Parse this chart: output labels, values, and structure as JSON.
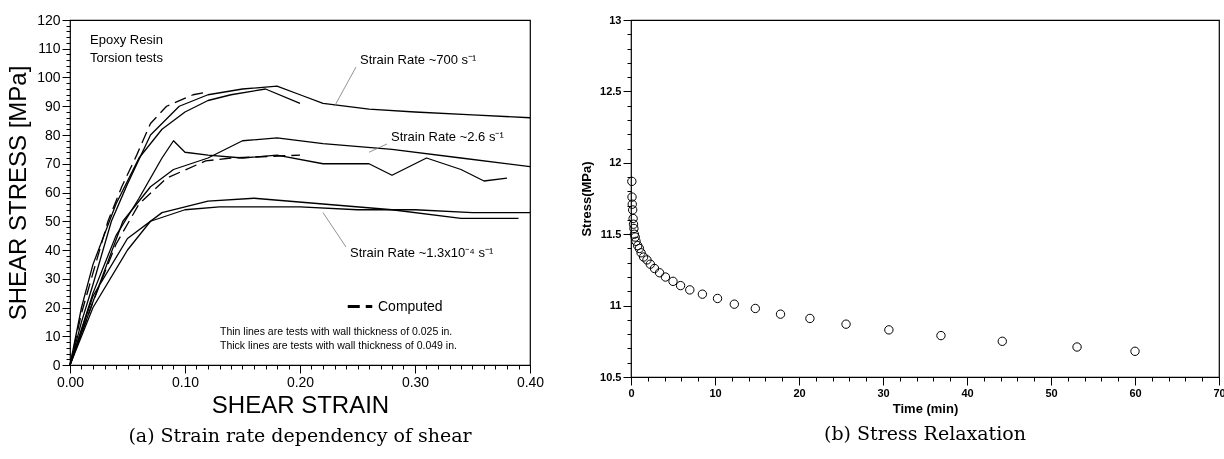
{
  "chart_data": [
    {
      "type": "line",
      "title": "(a) Strain rate dependency of shear",
      "xlabel": "SHEAR STRAIN",
      "ylabel": "SHEAR STRESS [MPa]",
      "xlim": [
        0,
        0.4
      ],
      "ylim": [
        0,
        120
      ],
      "xticks": [
        {
          "value": 0,
          "label": "0.00"
        },
        {
          "value": 0.01,
          "label": null
        },
        {
          "value": 0.02,
          "label": null
        },
        {
          "value": 0.03,
          "label": null
        },
        {
          "value": 0.04,
          "label": null
        },
        {
          "value": 0.05,
          "label": null
        },
        {
          "value": 0.06,
          "label": null
        },
        {
          "value": 0.07,
          "label": null
        },
        {
          "value": 0.08,
          "label": null
        },
        {
          "value": 0.09,
          "label": null
        },
        {
          "value": 0.1,
          "label": "0.10"
        },
        {
          "value": 0.11,
          "label": null
        },
        {
          "value": 0.12,
          "label": null
        },
        {
          "value": 0.13,
          "label": null
        },
        {
          "value": 0.14,
          "label": null
        },
        {
          "value": 0.15,
          "label": null
        },
        {
          "value": 0.16,
          "label": null
        },
        {
          "value": 0.17,
          "label": null
        },
        {
          "value": 0.18,
          "label": null
        },
        {
          "value": 0.19,
          "label": null
        },
        {
          "value": 0.2,
          "label": "0.20"
        },
        {
          "value": 0.21,
          "label": null
        },
        {
          "value": 0.22,
          "label": null
        },
        {
          "value": 0.23,
          "label": null
        },
        {
          "value": 0.24,
          "label": null
        },
        {
          "value": 0.25,
          "label": null
        },
        {
          "value": 0.26,
          "label": null
        },
        {
          "value": 0.27,
          "label": null
        },
        {
          "value": 0.28,
          "label": null
        },
        {
          "value": 0.29,
          "label": null
        },
        {
          "value": 0.3,
          "label": "0.30"
        },
        {
          "value": 0.31,
          "label": null
        },
        {
          "value": 0.32,
          "label": null
        },
        {
          "value": 0.33,
          "label": null
        },
        {
          "value": 0.34,
          "label": null
        },
        {
          "value": 0.35,
          "label": null
        },
        {
          "value": 0.36,
          "label": null
        },
        {
          "value": 0.37,
          "label": null
        },
        {
          "value": 0.38,
          "label": null
        },
        {
          "value": 0.39,
          "label": null
        },
        {
          "value": 0.4,
          "label": "0.40"
        }
      ],
      "yticks": [
        0,
        {
          "value": 2,
          "label": null
        },
        {
          "value": 4,
          "label": null
        },
        {
          "value": 6,
          "label": null
        },
        {
          "value": 8,
          "label": null
        },
        10,
        {
          "value": 12,
          "label": null
        },
        {
          "value": 14,
          "label": null
        },
        {
          "value": 16,
          "label": null
        },
        {
          "value": 18,
          "label": null
        },
        20,
        {
          "value": 22,
          "label": null
        },
        {
          "value": 24,
          "label": null
        },
        {
          "value": 26,
          "label": null
        },
        {
          "value": 28,
          "label": null
        },
        30,
        {
          "value": 32,
          "label": null
        },
        {
          "value": 34,
          "label": null
        },
        {
          "value": 36,
          "label": null
        },
        {
          "value": 38,
          "label": null
        },
        40,
        {
          "value": 42,
          "label": null
        },
        {
          "value": 44,
          "label": null
        },
        {
          "value": 46,
          "label": null
        },
        {
          "value": 48,
          "label": null
        },
        50,
        {
          "value": 52,
          "label": null
        },
        {
          "value": 54,
          "label": null
        },
        {
          "value": 56,
          "label": null
        },
        {
          "value": 58,
          "label": null
        },
        60,
        {
          "value": 62,
          "label": null
        },
        {
          "value": 64,
          "label": null
        },
        {
          "value": 66,
          "label": null
        },
        {
          "value": 68,
          "label": null
        },
        70,
        {
          "value": 72,
          "label": null
        },
        {
          "value": 74,
          "label": null
        },
        {
          "value": 76,
          "label": null
        },
        {
          "value": 78,
          "label": null
        },
        80,
        {
          "value": 82,
          "label": null
        },
        {
          "value": 84,
          "label": null
        },
        {
          "value": 86,
          "label": null
        },
        {
          "value": 88,
          "label": null
        },
        90,
        {
          "value": 92,
          "label": null
        },
        {
          "value": 94,
          "label": null
        },
        {
          "value": 96,
          "label": null
        },
        {
          "value": 98,
          "label": null
        },
        100,
        {
          "value": 102,
          "label": null
        },
        {
          "value": 104,
          "label": null
        },
        {
          "value": 106,
          "label": null
        },
        {
          "value": 108,
          "label": null
        },
        110,
        {
          "value": 112,
          "label": null
        },
        {
          "value": 114,
          "label": null
        },
        {
          "value": 116,
          "label": null
        },
        {
          "value": 118,
          "label": null
        },
        120
      ],
      "legend": "bottom right",
      "annotations": [
        "Epoxy Resin",
        "Torsion tests",
        {
          "text": "Strain Rate ~700 s⁻¹",
          "x": 0.23,
          "y": 90
        },
        {
          "text": "Strain Rate ~2.6 s⁻¹",
          "x": 0.26,
          "y": 74
        },
        {
          "text": "Strain Rate ~1.3x10⁻⁴ s⁻¹",
          "x": 0.22,
          "y": 53
        },
        "Thin lines are tests with wall thickness of 0.025 in.",
        "Thick lines are tests with wall thickness of 0.049 in."
      ],
      "series": [
        {
          "color": "#000000",
          "x": [
            0,
            0.01,
            0.02,
            0.036,
            0.05,
            0.07,
            0.095,
            0.12,
            0.15,
            0.18,
            0.2,
            0.22,
            0.26,
            0.3,
            0.35,
            0.4
          ],
          "values": [
            0,
            15,
            28,
            50,
            63,
            80,
            90,
            94,
            96,
            97,
            94,
            91,
            89,
            88,
            87,
            86
          ]
        },
        {
          "color": "#000000",
          "x": [
            0,
            0.01,
            0.02,
            0.04,
            0.06,
            0.08,
            0.1,
            0.12,
            0.14,
            0.17,
            0.2
          ],
          "values": [
            0,
            20,
            35,
            56,
            72,
            82,
            88,
            92,
            94,
            96,
            91
          ]
        },
        {
          "color": "#000000",
          "x": [
            0,
            0.02,
            0.046,
            0.07,
            0.09,
            0.12,
            0.15,
            0.18,
            0.22,
            0.28,
            0.34,
            0.4
          ],
          "values": [
            0,
            22,
            50,
            62,
            68,
            72,
            78,
            79,
            77,
            75,
            72,
            69
          ]
        },
        {
          "color": "#000000",
          "x": [
            0,
            0.02,
            0.04,
            0.06,
            0.08,
            0.09,
            0.1,
            0.12,
            0.15,
            0.18,
            0.22,
            0.26,
            0.28,
            0.31,
            0.34,
            0.36,
            0.38
          ],
          "values": [
            0,
            25,
            45,
            58,
            72,
            78,
            74,
            73,
            72,
            73,
            70,
            70,
            66,
            72,
            68,
            64,
            65
          ]
        },
        {
          "color": "#000000",
          "x": [
            0,
            0.02,
            0.05,
            0.07,
            0.1,
            0.13,
            0.2,
            0.25,
            0.3,
            0.35,
            0.4
          ],
          "values": [
            0,
            20,
            40,
            50,
            54,
            55,
            55,
            54,
            54,
            53,
            53
          ]
        },
        {
          "color": "#000000",
          "x": [
            0,
            0.02,
            0.05,
            0.08,
            0.12,
            0.16,
            0.22,
            0.28,
            0.34,
            0.39
          ],
          "values": [
            0,
            24,
            44,
            53,
            57,
            58,
            56,
            54,
            51,
            51
          ]
        },
        {
          "name": "Computed",
          "color": "#000000",
          "line_style": "dashed",
          "x": [
            0,
            0.01,
            0.02,
            0.033,
            0.045,
            0.058,
            0.07,
            0.084,
            0.107,
            0.12
          ],
          "values": [
            0,
            18,
            32,
            50,
            62,
            73,
            84,
            90,
            94,
            95
          ]
        },
        {
          "color": "#000000",
          "line_style": "dashed",
          "x": [
            0,
            0.02,
            0.04,
            0.06,
            0.084,
            0.118,
            0.14,
            0.2
          ],
          "values": [
            0,
            22,
            42,
            56,
            65,
            71,
            72,
            73
          ]
        }
      ]
    },
    {
      "type": "scatter",
      "title": "(b) Stress Relaxation",
      "xlabel": "Time (min)",
      "ylabel": "Stress(MPa)",
      "xlim": [
        0,
        70
      ],
      "ylim": [
        10.5,
        13
      ],
      "xticks": [
        0,
        {
          "value": 2,
          "label": null
        },
        {
          "value": 4,
          "label": null
        },
        {
          "value": 6,
          "label": null
        },
        {
          "value": 8,
          "label": null
        },
        10,
        {
          "value": 12,
          "label": null
        },
        {
          "value": 14,
          "label": null
        },
        {
          "value": 16,
          "label": null
        },
        {
          "value": 18,
          "label": null
        },
        20,
        {
          "value": 22,
          "label": null
        },
        {
          "value": 24,
          "label": null
        },
        {
          "value": 26,
          "label": null
        },
        {
          "value": 28,
          "label": null
        },
        30,
        {
          "value": 32,
          "label": null
        },
        {
          "value": 34,
          "label": null
        },
        {
          "value": 36,
          "label": null
        },
        {
          "value": 38,
          "label": null
        },
        40,
        {
          "value": 42,
          "label": null
        },
        {
          "value": 44,
          "label": null
        },
        {
          "value": 46,
          "label": null
        },
        {
          "value": 48,
          "label": null
        },
        50,
        {
          "value": 52,
          "label": null
        },
        {
          "value": 54,
          "label": null
        },
        {
          "value": 56,
          "label": null
        },
        {
          "value": 58,
          "label": null
        },
        60,
        {
          "value": 62,
          "label": null
        },
        {
          "value": 64,
          "label": null
        },
        {
          "value": 66,
          "label": null
        },
        {
          "value": 68,
          "label": null
        },
        70
      ],
      "yticks": [
        10.5,
        {
          "value": 10.6,
          "label": null
        },
        {
          "value": 10.7,
          "label": null
        },
        {
          "value": 10.8,
          "label": null
        },
        {
          "value": 10.9,
          "label": null
        },
        11,
        {
          "value": 11.1,
          "label": null
        },
        {
          "value": 11.2,
          "label": null
        },
        {
          "value": 11.3,
          "label": null
        },
        {
          "value": 11.4,
          "label": null
        },
        11.5,
        {
          "value": 11.6,
          "label": null
        },
        {
          "value": 11.7,
          "label": null
        },
        {
          "value": 11.8,
          "label": null
        },
        {
          "value": 11.9,
          "label": null
        },
        12,
        {
          "value": 12.1,
          "label": null
        },
        {
          "value": 12.2,
          "label": null
        },
        {
          "value": 12.3,
          "label": null
        },
        {
          "value": 12.4,
          "label": null
        },
        12.5,
        {
          "value": 12.6,
          "label": null
        },
        {
          "value": 12.7,
          "label": null
        },
        {
          "value": 12.8,
          "label": null
        },
        {
          "value": 12.9,
          "label": null
        },
        13
      ],
      "marker": "circle",
      "x": [
        0.1,
        0.12,
        0.15,
        0.2,
        0.25,
        0.3,
        0.35,
        0.4,
        0.5,
        0.6,
        0.8,
        1.0,
        1.2,
        1.5,
        1.9,
        2.3,
        2.8,
        3.4,
        4.1,
        5.0,
        5.9,
        7.0,
        8.5,
        10.3,
        12.3,
        14.8,
        17.8,
        21.3,
        25.6,
        30.7,
        36.9,
        44.2,
        53.1,
        60.0
      ],
      "values": [
        11.87,
        11.76,
        11.71,
        11.67,
        11.61,
        11.57,
        11.54,
        11.5,
        11.48,
        11.45,
        11.42,
        11.4,
        11.37,
        11.34,
        11.32,
        11.29,
        11.26,
        11.23,
        11.2,
        11.17,
        11.14,
        11.11,
        11.08,
        11.05,
        11.01,
        10.98,
        10.94,
        10.91,
        10.87,
        10.83,
        10.79,
        10.75,
        10.71,
        10.68
      ],
      "color": "#000000"
    }
  ]
}
